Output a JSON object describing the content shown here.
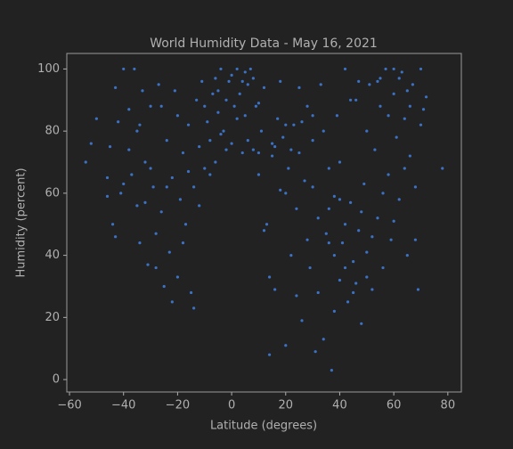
{
  "chart_data": {
    "type": "scatter",
    "title": "World Humidity Data - May 16, 2021",
    "xlabel": "Latitude (degrees)",
    "ylabel": "Humidity (percent)",
    "color": "#3b72c6",
    "grid": false,
    "xlim": [
      -61,
      85
    ],
    "ylim": [
      -4,
      105
    ],
    "xticks": [
      {
        "value": -60,
        "label": "−60"
      },
      {
        "value": -40,
        "label": "−40"
      },
      {
        "value": -20,
        "label": "−20"
      },
      0,
      20,
      40,
      60,
      80
    ],
    "yticks": [
      0,
      20,
      40,
      60,
      80,
      100
    ],
    "x": [
      -54,
      -52,
      -46,
      -45,
      -44,
      -43,
      -42,
      -41,
      -40,
      -38,
      -37,
      -36,
      -35,
      -34,
      -34,
      -33,
      -32,
      -31,
      -30,
      -29,
      -28,
      -27,
      -26,
      -25,
      -24,
      -23,
      -22,
      -21,
      -20,
      -19,
      -18,
      -17,
      -16,
      -15,
      -14,
      -13,
      -12,
      -11,
      -10,
      -9,
      -8,
      -7,
      -6,
      -5,
      -4,
      -3,
      -2,
      -1,
      0,
      1,
      2,
      3,
      4,
      5,
      6,
      7,
      8,
      9,
      10,
      11,
      12,
      13,
      14,
      15,
      16,
      17,
      18,
      19,
      20,
      21,
      22,
      23,
      24,
      25,
      26,
      27,
      28,
      29,
      30,
      31,
      32,
      33,
      34,
      35,
      36,
      37,
      38,
      39,
      40,
      41,
      42,
      43,
      44,
      45,
      46,
      47,
      48,
      49,
      50,
      51,
      52,
      53,
      54,
      55,
      56,
      57,
      58,
      59,
      60,
      61,
      62,
      63,
      64,
      65,
      66,
      67,
      68,
      69,
      70,
      71,
      72,
      78,
      -50,
      -46,
      -43,
      -40,
      -38,
      -35,
      -32,
      -30,
      -28,
      -26,
      -24,
      -22,
      -20,
      -18,
      -16,
      -14,
      -12,
      -10,
      -8,
      -6,
      -4,
      -2,
      0,
      2,
      4,
      6,
      8,
      10,
      12,
      14,
      16,
      18,
      20,
      22,
      24,
      26,
      28,
      30,
      32,
      34,
      36,
      38,
      40,
      42,
      44,
      46,
      48,
      50,
      52,
      54,
      56,
      58,
      60,
      62,
      64,
      66,
      68,
      70,
      42,
      38,
      45,
      50,
      36,
      40,
      47,
      55,
      60,
      65,
      30,
      25,
      15,
      5,
      -5,
      20,
      10
    ],
    "values": [
      70,
      76,
      65,
      75,
      50,
      94,
      83,
      60,
      100,
      87,
      66,
      100,
      56,
      82,
      44,
      93,
      70,
      37,
      88,
      62,
      36,
      95,
      54,
      30,
      77,
      41,
      65,
      93,
      33,
      58,
      73,
      50,
      82,
      28,
      62,
      90,
      75,
      96,
      68,
      83,
      77,
      92,
      70,
      86,
      100,
      80,
      74,
      96,
      98,
      88,
      100,
      92,
      73,
      85,
      95,
      100,
      74,
      88,
      66,
      80,
      94,
      50,
      8,
      72,
      29,
      84,
      61,
      78,
      11,
      68,
      40,
      82,
      55,
      73,
      19,
      64,
      88,
      36,
      77,
      9,
      52,
      95,
      13,
      47,
      68,
      3,
      59,
      85,
      32,
      44,
      100,
      25,
      57,
      38,
      90,
      48,
      18,
      63,
      41,
      95,
      29,
      74,
      52,
      88,
      36,
      100,
      66,
      45,
      92,
      78,
      58,
      99,
      84,
      40,
      72,
      95,
      62,
      29,
      100,
      87,
      91,
      68,
      84,
      59,
      46,
      63,
      74,
      80,
      57,
      68,
      47,
      88,
      62,
      25,
      85,
      44,
      67,
      23,
      56,
      88,
      66,
      97,
      79,
      90,
      76,
      84,
      96,
      77,
      97,
      89,
      48,
      33,
      75,
      96,
      60,
      74,
      27,
      83,
      45,
      62,
      28,
      80,
      55,
      22,
      70,
      36,
      90,
      31,
      54,
      80,
      46,
      96,
      60,
      85,
      51,
      97,
      68,
      88,
      45,
      82,
      50,
      40,
      28,
      33,
      44,
      58,
      96,
      97,
      100,
      93,
      85,
      94,
      76,
      99,
      93,
      82,
      73
    ]
  }
}
